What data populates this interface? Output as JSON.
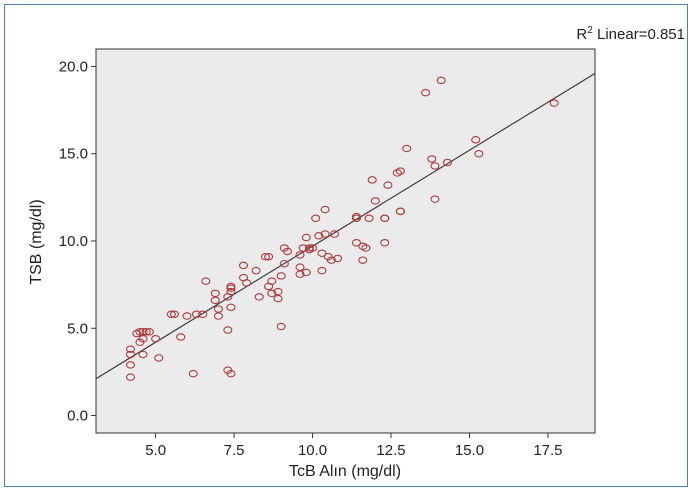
{
  "chart_data": {
    "type": "scatter",
    "xlabel": "TcB Alın (mg/dl)",
    "ylabel": "TSB (mg/dl)",
    "xlim": [
      3.1,
      19.0
    ],
    "ylim": [
      -1.0,
      21.0
    ],
    "xticks": [
      5.0,
      7.5,
      10.0,
      12.5,
      15.0,
      17.5
    ],
    "yticks": [
      0.0,
      5.0,
      10.0,
      15.0,
      20.0
    ],
    "tick_format_decimals": 1,
    "grid": false,
    "background_color": "#ebebeb",
    "marker_color": "#b03a3a",
    "fit_line_color": "#404040",
    "fit_line": {
      "label_prefix": "R",
      "label_sup": "2",
      "label_text": " Linear=0.851",
      "slope": 1.1,
      "intercept": -1.3
    },
    "points": [
      [
        4.2,
        3.8
      ],
      [
        4.2,
        3.5
      ],
      [
        4.2,
        2.9
      ],
      [
        4.2,
        2.2
      ],
      [
        4.4,
        4.7
      ],
      [
        4.5,
        4.8
      ],
      [
        4.6,
        4.8
      ],
      [
        4.7,
        4.8
      ],
      [
        4.8,
        4.8
      ],
      [
        4.5,
        4.2
      ],
      [
        4.6,
        4.4
      ],
      [
        4.6,
        3.5
      ],
      [
        5.0,
        4.4
      ],
      [
        5.1,
        3.3
      ],
      [
        5.5,
        5.8
      ],
      [
        5.6,
        5.8
      ],
      [
        5.8,
        4.5
      ],
      [
        6.0,
        5.7
      ],
      [
        6.2,
        2.4
      ],
      [
        6.3,
        5.8
      ],
      [
        6.5,
        5.8
      ],
      [
        6.6,
        7.7
      ],
      [
        6.9,
        7.0
      ],
      [
        6.9,
        6.6
      ],
      [
        7.0,
        6.1
      ],
      [
        7.0,
        5.7
      ],
      [
        7.3,
        6.8
      ],
      [
        7.4,
        7.1
      ],
      [
        7.4,
        7.3
      ],
      [
        7.4,
        7.4
      ],
      [
        7.4,
        6.2
      ],
      [
        7.3,
        4.9
      ],
      [
        7.3,
        2.6
      ],
      [
        7.4,
        2.4
      ],
      [
        7.8,
        8.6
      ],
      [
        7.8,
        7.9
      ],
      [
        7.9,
        7.6
      ],
      [
        8.2,
        8.3
      ],
      [
        8.3,
        6.8
      ],
      [
        8.5,
        9.1
      ],
      [
        8.6,
        9.1
      ],
      [
        8.6,
        7.4
      ],
      [
        8.7,
        7.7
      ],
      [
        8.7,
        7.0
      ],
      [
        8.9,
        7.1
      ],
      [
        8.9,
        6.7
      ],
      [
        9.0,
        8.0
      ],
      [
        9.0,
        5.1
      ],
      [
        9.1,
        8.7
      ],
      [
        9.1,
        9.6
      ],
      [
        9.2,
        9.4
      ],
      [
        9.6,
        9.2
      ],
      [
        9.6,
        8.5
      ],
      [
        9.6,
        8.1
      ],
      [
        9.7,
        9.6
      ],
      [
        9.8,
        8.2
      ],
      [
        9.8,
        10.2
      ],
      [
        9.9,
        9.6
      ],
      [
        9.9,
        9.5
      ],
      [
        10.0,
        9.6
      ],
      [
        10.1,
        11.3
      ],
      [
        10.2,
        10.3
      ],
      [
        10.3,
        9.3
      ],
      [
        10.3,
        8.3
      ],
      [
        10.4,
        11.8
      ],
      [
        10.4,
        10.4
      ],
      [
        10.5,
        9.1
      ],
      [
        10.6,
        8.9
      ],
      [
        10.7,
        10.4
      ],
      [
        10.8,
        9.0
      ],
      [
        11.4,
        11.4
      ],
      [
        11.4,
        11.3
      ],
      [
        11.4,
        9.9
      ],
      [
        11.6,
        8.9
      ],
      [
        11.6,
        9.7
      ],
      [
        11.7,
        9.6
      ],
      [
        11.8,
        11.3
      ],
      [
        11.9,
        13.5
      ],
      [
        12.0,
        12.3
      ],
      [
        12.3,
        11.3
      ],
      [
        12.3,
        11.3
      ],
      [
        12.3,
        9.9
      ],
      [
        12.4,
        13.2
      ],
      [
        12.7,
        13.9
      ],
      [
        12.8,
        14.0
      ],
      [
        12.8,
        11.7
      ],
      [
        12.8,
        11.7
      ],
      [
        13.0,
        15.3
      ],
      [
        13.6,
        18.5
      ],
      [
        13.8,
        14.7
      ],
      [
        13.9,
        14.3
      ],
      [
        13.9,
        12.4
      ],
      [
        14.1,
        19.2
      ],
      [
        14.3,
        14.5
      ],
      [
        15.2,
        15.8
      ],
      [
        15.3,
        15.0
      ],
      [
        17.7,
        17.9
      ]
    ]
  }
}
